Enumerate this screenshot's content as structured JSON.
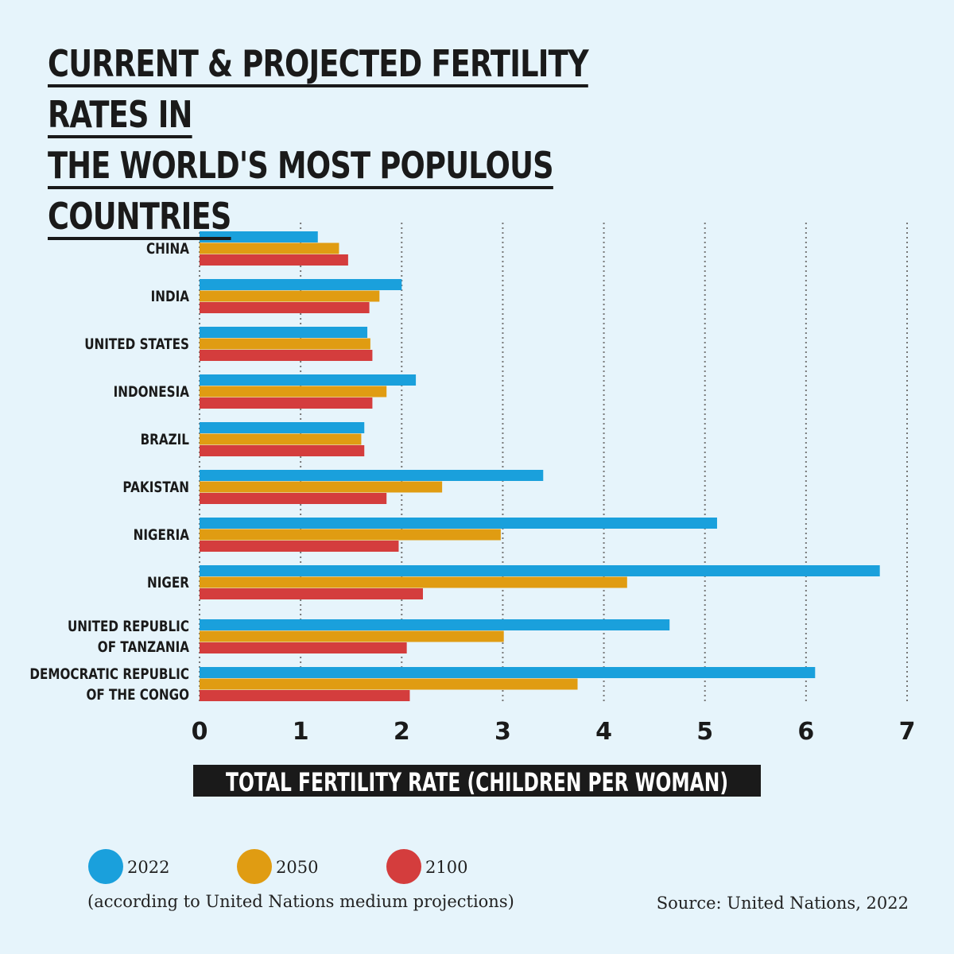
{
  "chart_data": {
    "type": "barh",
    "title": "CURRENT & PROJECTED FERTILITY RATES IN\nTHE WORLD'S MOST POPULOUS COUNTRIES",
    "categories": [
      "CHINA",
      "INDIA",
      "UNITED STATES",
      "INDONESIA",
      "BRAZIL",
      "PAKISTAN",
      "NIGERIA",
      "NIGER",
      "UNITED REPUBLIC\nOF TANZANIA",
      "DEMOCRATIC REPUBLIC\nOF THE CONGO"
    ],
    "series": [
      {
        "name": "2022",
        "color": "#1aa0dc",
        "values": [
          1.17,
          2.0,
          1.66,
          2.14,
          1.63,
          3.4,
          5.12,
          6.73,
          4.65,
          6.09
        ]
      },
      {
        "name": "2050",
        "color": "#e09c12",
        "values": [
          1.38,
          1.78,
          1.69,
          1.85,
          1.6,
          2.4,
          2.98,
          4.23,
          3.01,
          3.74
        ]
      },
      {
        "name": "2100",
        "color": "#d43d3d",
        "values": [
          1.47,
          1.68,
          1.71,
          1.71,
          1.63,
          1.85,
          1.97,
          2.21,
          2.05,
          2.08
        ]
      }
    ],
    "xlabel": "TOTAL FERTILITY RATE (CHILDREN PER WOMAN)",
    "xlim": [
      0,
      7
    ],
    "xticks": [
      0,
      1,
      2,
      3,
      4,
      5,
      6,
      7
    ],
    "grid": true,
    "legend_note": "(according to United Nations medium projections)",
    "source": "Source: United Nations, 2022"
  }
}
